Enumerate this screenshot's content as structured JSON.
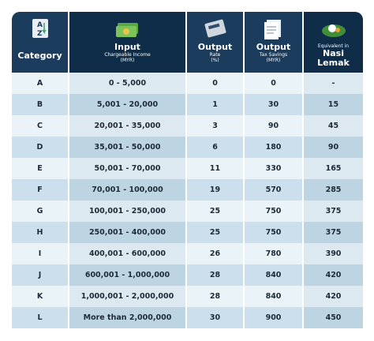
{
  "header": {
    "columns": [
      {
        "title": "Category"
      },
      {
        "title": "Input",
        "subtitle_lines": [
          "Chargeable Income",
          "(MYR)"
        ]
      },
      {
        "title": "Output",
        "subtitle_lines": [
          "Rate",
          "(%)"
        ]
      },
      {
        "title": "Output",
        "subtitle_lines": [
          "Tax Savings",
          "(MYR)"
        ]
      },
      {
        "title_lines": [
          "Equivalent in",
          "Nasi",
          "Lemak"
        ]
      }
    ]
  },
  "table": {
    "rows": [
      [
        "A",
        "0 - 5,000",
        "0",
        "0",
        "-"
      ],
      [
        "B",
        "5,001 - 20,000",
        "1",
        "30",
        "15"
      ],
      [
        "C",
        "20,001 - 35,000",
        "3",
        "90",
        "45"
      ],
      [
        "D",
        "35,001 - 50,000",
        "6",
        "180",
        "90"
      ],
      [
        "E",
        "50,001 - 70,000",
        "11",
        "330",
        "165"
      ],
      [
        "F",
        "70,001 - 100,000",
        "19",
        "570",
        "285"
      ],
      [
        "G",
        "100,001 - 250,000",
        "25",
        "750",
        "375"
      ],
      [
        "H",
        "250,001 - 400,000",
        "25",
        "750",
        "375"
      ],
      [
        "I",
        "400,001 - 600,000",
        "26",
        "780",
        "390"
      ],
      [
        "J",
        "600,001 - 1,000,000",
        "28",
        "840",
        "420"
      ],
      [
        "K",
        "1,000,001 - 2,000,000",
        "28",
        "840",
        "420"
      ],
      [
        "L",
        "More than 2,000,000",
        "30",
        "900",
        "450"
      ]
    ]
  }
}
